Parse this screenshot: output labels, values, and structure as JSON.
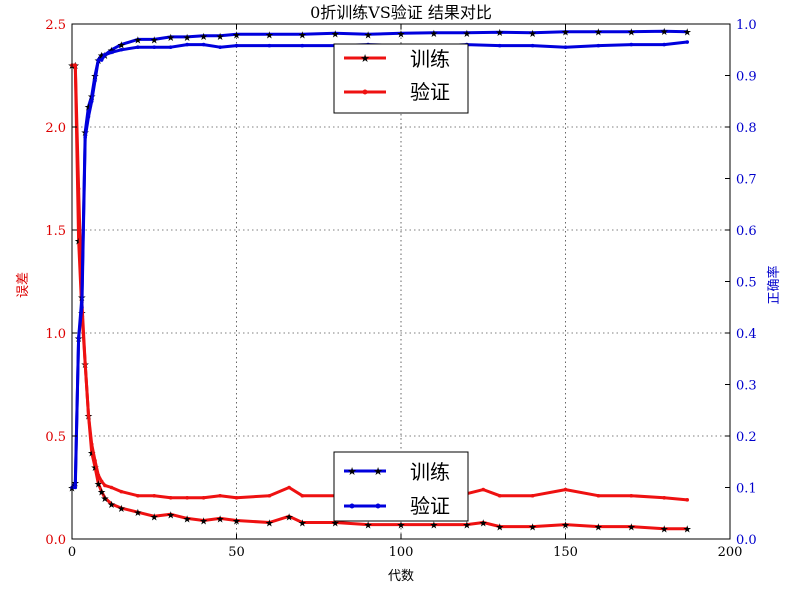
{
  "chart_data": {
    "type": "line",
    "title": "0折训练VS验证 结果对比",
    "xlabel": "代数",
    "ylabel_left": "误差",
    "ylabel_right": "正确率",
    "xlim": [
      0,
      200
    ],
    "ylim_left": [
      0,
      2.5
    ],
    "ylim_right": [
      0,
      1.0
    ],
    "x_ticks": [
      0,
      50,
      100,
      150,
      200
    ],
    "y_left_ticks": [
      "0.0",
      "0.5",
      "1.0",
      "1.5",
      "2.0",
      "2.5"
    ],
    "y_right_ticks": [
      "0.0",
      "0.1",
      "0.2",
      "0.3",
      "0.4",
      "0.5",
      "0.6",
      "0.7",
      "0.8",
      "0.9",
      "1.0"
    ],
    "grid": true,
    "legends": [
      {
        "placement": "top-center",
        "axis": "loss",
        "entries": [
          "训练",
          "验证"
        ]
      },
      {
        "placement": "bottom-center",
        "axis": "accuracy",
        "entries": [
          "训练",
          "验证"
        ]
      }
    ],
    "series": [
      {
        "name": "训练",
        "axis": "left",
        "metric": "loss",
        "color": "#ee1111",
        "marker": "star",
        "x": [
          0,
          1,
          2,
          3,
          4,
          5,
          6,
          7,
          8,
          9,
          10,
          12,
          15,
          20,
          25,
          30,
          35,
          40,
          45,
          50,
          60,
          66,
          70,
          80,
          90,
          100,
          110,
          120,
          125,
          130,
          140,
          150,
          160,
          170,
          180,
          187
        ],
        "values": [
          2.3,
          2.3,
          1.45,
          1.1,
          0.85,
          0.6,
          0.42,
          0.35,
          0.27,
          0.23,
          0.2,
          0.17,
          0.15,
          0.13,
          0.11,
          0.12,
          0.1,
          0.09,
          0.1,
          0.09,
          0.08,
          0.11,
          0.08,
          0.08,
          0.07,
          0.07,
          0.07,
          0.07,
          0.08,
          0.06,
          0.06,
          0.07,
          0.06,
          0.06,
          0.05,
          0.05
        ]
      },
      {
        "name": "验证",
        "axis": "left",
        "metric": "loss",
        "color": "#ee1111",
        "marker": "dot",
        "x": [
          0,
          1,
          2,
          3,
          4,
          5,
          6,
          7,
          8,
          9,
          10,
          12,
          15,
          20,
          25,
          30,
          35,
          40,
          45,
          50,
          60,
          66,
          70,
          80,
          90,
          100,
          110,
          120,
          125,
          130,
          140,
          150,
          160,
          170,
          180,
          187
        ],
        "values": [
          2.3,
          2.3,
          1.7,
          1.15,
          0.85,
          0.6,
          0.46,
          0.38,
          0.31,
          0.28,
          0.26,
          0.25,
          0.23,
          0.21,
          0.21,
          0.2,
          0.2,
          0.2,
          0.21,
          0.2,
          0.21,
          0.25,
          0.21,
          0.21,
          0.2,
          0.21,
          0.21,
          0.22,
          0.24,
          0.21,
          0.21,
          0.24,
          0.21,
          0.21,
          0.2,
          0.19
        ]
      },
      {
        "name": "训练",
        "axis": "right",
        "metric": "accuracy",
        "color": "#0000dd",
        "marker": "star",
        "x": [
          0,
          1,
          2,
          3,
          4,
          5,
          6,
          7,
          8,
          9,
          10,
          12,
          15,
          20,
          25,
          30,
          35,
          40,
          45,
          50,
          60,
          70,
          80,
          90,
          100,
          110,
          120,
          130,
          140,
          150,
          160,
          170,
          180,
          187
        ],
        "values": [
          0.1,
          0.11,
          0.39,
          0.47,
          0.79,
          0.84,
          0.86,
          0.9,
          0.93,
          0.94,
          0.94,
          0.95,
          0.96,
          0.97,
          0.97,
          0.975,
          0.975,
          0.977,
          0.977,
          0.98,
          0.98,
          0.98,
          0.982,
          0.98,
          0.982,
          0.983,
          0.983,
          0.984,
          0.983,
          0.985,
          0.985,
          0.985,
          0.986,
          0.985
        ]
      },
      {
        "name": "验证",
        "axis": "right",
        "metric": "accuracy",
        "color": "#0000dd",
        "marker": "dot",
        "x": [
          0,
          1,
          2,
          3,
          4,
          5,
          6,
          7,
          8,
          9,
          10,
          12,
          15,
          20,
          25,
          30,
          35,
          40,
          45,
          50,
          60,
          70,
          80,
          90,
          100,
          110,
          120,
          130,
          140,
          150,
          160,
          170,
          180,
          187
        ],
        "values": [
          0.1,
          0.1,
          0.39,
          0.45,
          0.78,
          0.82,
          0.85,
          0.89,
          0.93,
          0.93,
          0.94,
          0.945,
          0.95,
          0.955,
          0.955,
          0.955,
          0.96,
          0.96,
          0.955,
          0.958,
          0.958,
          0.958,
          0.958,
          0.96,
          0.958,
          0.957,
          0.96,
          0.958,
          0.958,
          0.955,
          0.958,
          0.96,
          0.96,
          0.965
        ]
      }
    ]
  }
}
